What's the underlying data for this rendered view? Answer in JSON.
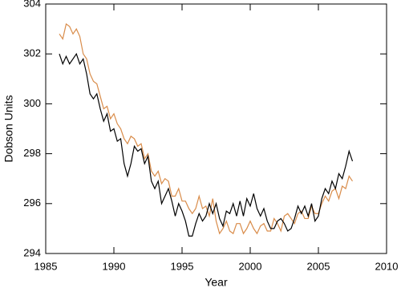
{
  "chart_data": {
    "type": "line",
    "x_label": "Year",
    "y_label": "Dobson Units",
    "xlim": [
      1985,
      2010
    ],
    "xticks": [
      1985,
      1990,
      1995,
      2000,
      2005,
      2010
    ],
    "ylim": [
      294,
      304
    ],
    "yticks": [
      294,
      296,
      298,
      300,
      302,
      304
    ],
    "x": [
      1986,
      1986.25,
      1986.5,
      1986.75,
      1987,
      1987.25,
      1987.5,
      1987.75,
      1988,
      1988.25,
      1988.5,
      1988.75,
      1989,
      1989.25,
      1989.5,
      1989.75,
      1990,
      1990.25,
      1990.5,
      1990.75,
      1991,
      1991.25,
      1991.5,
      1991.75,
      1992,
      1992.25,
      1992.5,
      1992.75,
      1993,
      1993.25,
      1993.5,
      1993.75,
      1994,
      1994.25,
      1994.5,
      1994.75,
      1995,
      1995.25,
      1995.5,
      1995.75,
      1996,
      1996.25,
      1996.5,
      1996.75,
      1997,
      1997.25,
      1997.5,
      1997.75,
      1998,
      1998.25,
      1998.5,
      1998.75,
      1999,
      1999.25,
      1999.5,
      1999.75,
      2000,
      2000.25,
      2000.5,
      2000.75,
      2001,
      2001.25,
      2001.5,
      2001.75,
      2002,
      2002.25,
      2002.5,
      2002.75,
      2003,
      2003.25,
      2003.5,
      2003.75,
      2004,
      2004.25,
      2004.5,
      2004.75,
      2005,
      2005.25,
      2005.5,
      2005.75,
      2006,
      2006.25,
      2006.5,
      2006.75,
      2007,
      2007.25,
      2007.5
    ],
    "series": [
      {
        "color": "#000000",
        "values": [
          302.0,
          301.6,
          301.9,
          301.6,
          301.8,
          302.0,
          301.6,
          301.8,
          301.2,
          300.4,
          300.2,
          300.4,
          299.8,
          299.3,
          299.6,
          298.9,
          299.0,
          298.5,
          298.6,
          297.6,
          297.1,
          297.6,
          298.3,
          298.1,
          298.2,
          297.6,
          297.9,
          296.9,
          296.6,
          296.9,
          296.0,
          296.3,
          296.6,
          296.1,
          295.5,
          296.0,
          295.7,
          295.3,
          294.7,
          294.7,
          295.2,
          295.6,
          295.3,
          295.5,
          296.0,
          295.6,
          296.0,
          295.4,
          295.1,
          295.7,
          295.6,
          296.0,
          295.5,
          296.1,
          295.5,
          296.2,
          295.9,
          296.4,
          295.8,
          295.5,
          295.8,
          295.3,
          295.0,
          295.0,
          295.3,
          295.4,
          295.2,
          294.9,
          295.0,
          295.4,
          295.9,
          295.6,
          295.9,
          295.5,
          296.0,
          295.3,
          295.5,
          296.2,
          296.6,
          296.4,
          296.9,
          296.6,
          297.2,
          297.0,
          297.5,
          298.1,
          297.7
        ]
      },
      {
        "color": "#d98c4a",
        "values": [
          302.8,
          302.6,
          303.2,
          303.1,
          302.8,
          303.0,
          302.7,
          302.0,
          301.8,
          301.2,
          300.9,
          300.8,
          300.3,
          299.8,
          299.9,
          299.4,
          299.6,
          299.2,
          299.0,
          298.6,
          298.4,
          298.7,
          298.6,
          298.3,
          298.4,
          297.8,
          298.0,
          297.3,
          297.1,
          297.3,
          296.8,
          297.0,
          296.9,
          296.3,
          296.3,
          296.6,
          296.1,
          296.1,
          295.8,
          295.6,
          295.8,
          296.3,
          295.8,
          295.9,
          295.5,
          296.2,
          295.3,
          294.8,
          295.0,
          295.3,
          294.9,
          294.8,
          295.2,
          295.2,
          294.8,
          295.0,
          295.3,
          295.0,
          294.8,
          295.1,
          295.2,
          294.9,
          294.9,
          295.4,
          295.2,
          294.9,
          295.5,
          295.6,
          295.4,
          295.2,
          295.6,
          295.7,
          295.4,
          295.4,
          295.9,
          295.6,
          295.6,
          296.0,
          296.3,
          296.1,
          296.5,
          296.6,
          296.2,
          296.7,
          296.6,
          297.1,
          296.9
        ]
      }
    ]
  }
}
